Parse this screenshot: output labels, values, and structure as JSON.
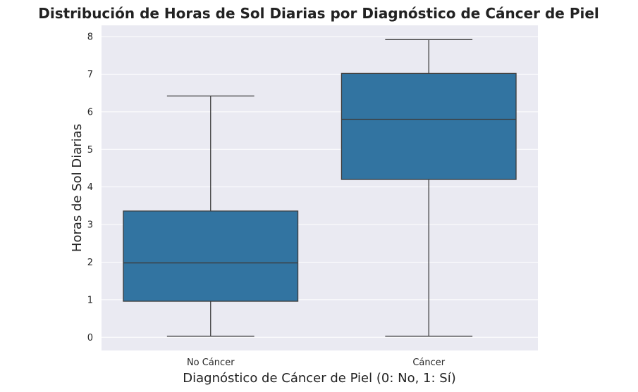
{
  "chart_data": {
    "type": "box",
    "title": "Distribución de Horas de Sol Diarias por Diagnóstico de Cáncer de Piel",
    "xlabel": "Diagnóstico de Cáncer de Piel (0: No, 1: Sí)",
    "ylabel": "Horas de Sol Diarias",
    "categories": [
      "No Cáncer",
      "Cáncer"
    ],
    "boxes": [
      {
        "category": "No Cáncer",
        "whisker_low": 0.03,
        "q1": 0.96,
        "median": 1.98,
        "q3": 3.36,
        "whisker_high": 6.42
      },
      {
        "category": "Cáncer",
        "whisker_low": 0.03,
        "q1": 4.2,
        "median": 5.8,
        "q3": 7.02,
        "whisker_high": 7.92
      }
    ],
    "ylim": [
      -0.35,
      8.3
    ],
    "yticks": [
      "0",
      "1",
      "2",
      "3",
      "4",
      "5",
      "6",
      "7",
      "8"
    ],
    "grid": true,
    "colors": {
      "box": "#3274a1",
      "plot_bg": "#eaeaf2",
      "grid": "#ffffff",
      "line": "#3d3d3d"
    }
  }
}
